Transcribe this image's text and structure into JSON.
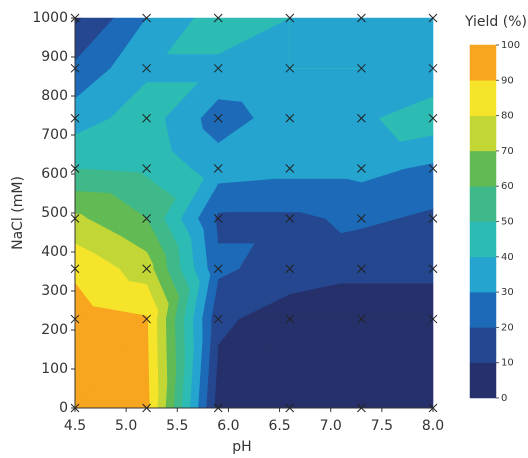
{
  "chart_data": {
    "type": "contour",
    "x_label": "pH",
    "y_label": "NaCl (mM)",
    "colorbar_label": "Yield (%)",
    "x": [
      4.5,
      5.2,
      5.9,
      6.6,
      7.3,
      8.0
    ],
    "y": [
      0,
      228,
      357,
      486,
      614,
      743,
      871,
      1000
    ],
    "z": [
      [
        95,
        93,
        5,
        5,
        5,
        5
      ],
      [
        95,
        91,
        12,
        5,
        5,
        5
      ],
      [
        88,
        75,
        22,
        15,
        12,
        12
      ],
      [
        72,
        60,
        18,
        18,
        22,
        18
      ],
      [
        50,
        48,
        35,
        33,
        33,
        28
      ],
      [
        35,
        45,
        25,
        35,
        38,
        46
      ],
      [
        22,
        38,
        38,
        40,
        40,
        32
      ],
      [
        8,
        30,
        45,
        40,
        38,
        38
      ]
    ],
    "levels": [
      0,
      10,
      20,
      30,
      40,
      50,
      60,
      70,
      80,
      90,
      100
    ],
    "colors": [
      "#26306a",
      "#25478f",
      "#1d6bb8",
      "#25a4cf",
      "#2cbcb4",
      "#3fb88a",
      "#62ba55",
      "#c2d736",
      "#f6e42a",
      "#f8a51f",
      "#ee412c"
    ],
    "xlim": [
      4.5,
      8.0
    ],
    "ylim": [
      0,
      1000
    ],
    "xticks": [
      4.5,
      {
        "value": 5.0,
        "label": "5.0"
      },
      5.5,
      {
        "value": 6.0,
        "label": "6.0"
      },
      6.5,
      {
        "value": 7.0,
        "label": "7.0"
      },
      7.5,
      {
        "value": 8.0,
        "label": "8.0"
      }
    ],
    "yticks": [
      0,
      100,
      200,
      300,
      400,
      500,
      600,
      700,
      800,
      900,
      1000
    ],
    "marker_color": "#222222"
  }
}
